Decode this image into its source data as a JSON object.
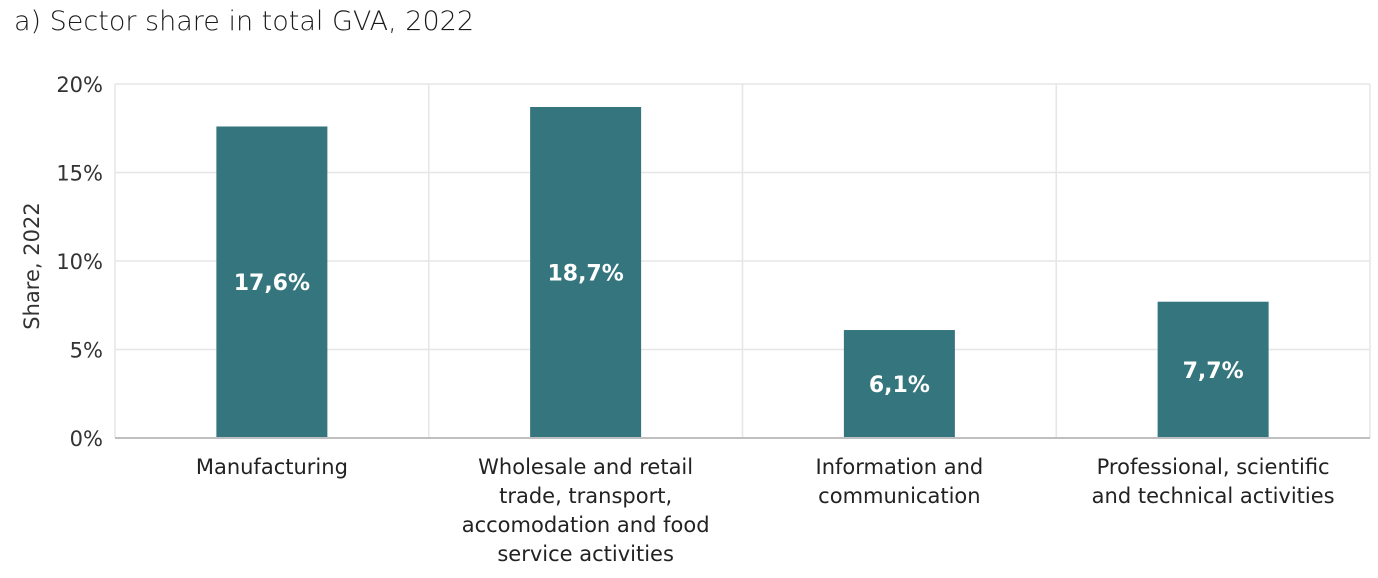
{
  "chart_data": {
    "type": "bar",
    "title": "a) Sector share in total GVA, 2022",
    "xlabel": "",
    "ylabel": "Share, 2022",
    "categories": [
      [
        "Manufacturing"
      ],
      [
        "Wholesale and retail",
        "trade, transport,",
        "accomodation and food",
        "service activities"
      ],
      [
        "Information and",
        "communication"
      ],
      [
        "Professional, scientific",
        "and technical activities"
      ]
    ],
    "values": [
      17.6,
      18.7,
      6.1,
      7.7
    ],
    "data_labels": [
      "17,6%",
      "18,7%",
      "6,1%",
      "7,7%"
    ],
    "ylim": [
      0,
      20
    ],
    "yticks": [
      0,
      5,
      10,
      15,
      20
    ],
    "ytick_labels": [
      "0%",
      "5%",
      "10%",
      "15%",
      "20%"
    ],
    "grid": true,
    "legend": "none",
    "bar_color": "#35767e",
    "grid_color": "#e6e6e6",
    "axis_color": "#bfbfbf"
  }
}
